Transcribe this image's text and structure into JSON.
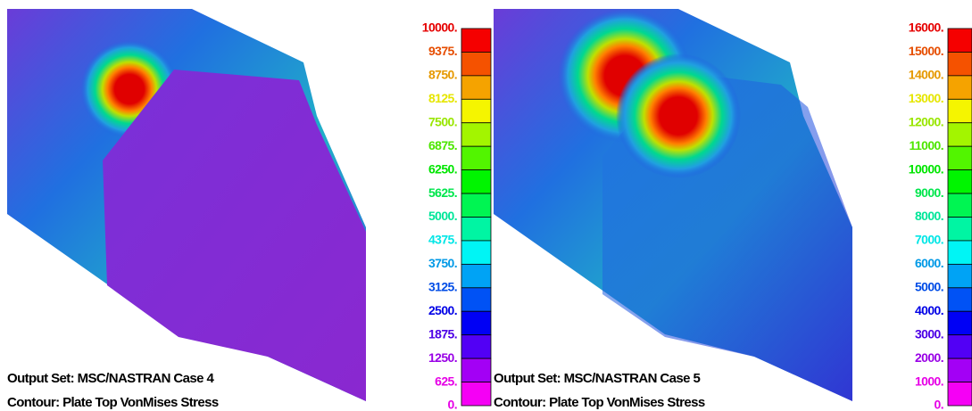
{
  "panels": [
    {
      "legend": [
        "10000.",
        "9375.",
        "8750.",
        "8125.",
        "7500.",
        "6875.",
        "6250.",
        "5625.",
        "5000.",
        "4375.",
        "3750.",
        "3125.",
        "2500.",
        "1875.",
        "1250.",
        "625.",
        "0."
      ],
      "caption": [
        "Output Set: MSC/NASTRAN Case 4",
        "Contour: Plate Top VonMises Stress"
      ]
    },
    {
      "legend": [
        "16000.",
        "15000.",
        "14000.",
        "13000.",
        "12000.",
        "11000.",
        "10000.",
        "9000.",
        "8000.",
        "7000.",
        "6000.",
        "5000.",
        "4000.",
        "3000.",
        "2000.",
        "1000.",
        "0."
      ],
      "caption": [
        "Output Set: MSC/NASTRAN Case 5",
        "Contour: Plate Top VonMises Stress"
      ]
    }
  ]
}
